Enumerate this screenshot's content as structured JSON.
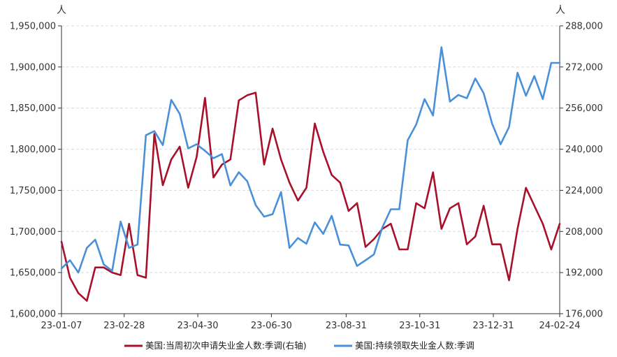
{
  "chart_data": {
    "type": "line",
    "left_axis": {
      "unit": "人",
      "ylim": [
        1600000,
        1950000
      ],
      "ticks": [
        "1,950,000",
        "1,900,000",
        "1,850,000",
        "1,800,000",
        "1,750,000",
        "1,700,000",
        "1,650,000",
        "1,600,000"
      ]
    },
    "right_axis": {
      "unit": "人",
      "ylim": [
        176000,
        288000
      ],
      "ticks": [
        "288,000",
        "272,000",
        "256,000",
        "240,000",
        "224,000",
        "208,000",
        "192,000",
        "176,000"
      ]
    },
    "x_tick_labels": [
      "23-01-07",
      "23-02-28",
      "23-04-30",
      "23-06-30",
      "23-08-31",
      "23-10-31",
      "23-12-31",
      "24-02-24"
    ],
    "x_tick_dates": [
      "2023-01-07",
      "2023-02-28",
      "2023-04-30",
      "2023-06-30",
      "2023-08-31",
      "2023-10-31",
      "2023-12-31",
      "2024-02-24"
    ],
    "x_range": [
      "2023-01-07",
      "2024-02-24"
    ],
    "grid": "horizontal dashed",
    "legend_position": "bottom",
    "series": [
      {
        "name": "美国:当周初次申请失业金人数:季调(右轴)",
        "axis": "right",
        "color": "#a8102a",
        "x": [
          "2023-01-07",
          "2023-01-14",
          "2023-01-21",
          "2023-01-28",
          "2023-02-04",
          "2023-02-11",
          "2023-02-18",
          "2023-02-25",
          "2023-03-04",
          "2023-03-11",
          "2023-03-18",
          "2023-03-25",
          "2023-04-01",
          "2023-04-08",
          "2023-04-15",
          "2023-04-22",
          "2023-04-29",
          "2023-05-06",
          "2023-05-13",
          "2023-05-20",
          "2023-05-27",
          "2023-06-03",
          "2023-06-10",
          "2023-06-17",
          "2023-06-24",
          "2023-07-01",
          "2023-07-08",
          "2023-07-15",
          "2023-07-22",
          "2023-07-29",
          "2023-08-05",
          "2023-08-12",
          "2023-08-19",
          "2023-08-26",
          "2023-09-02",
          "2023-09-09",
          "2023-09-16",
          "2023-09-23",
          "2023-09-30",
          "2023-10-07",
          "2023-10-14",
          "2023-10-21",
          "2023-10-28",
          "2023-11-04",
          "2023-11-11",
          "2023-11-18",
          "2023-11-25",
          "2023-12-02",
          "2023-12-09",
          "2023-12-16",
          "2023-12-23",
          "2023-12-30",
          "2024-01-06",
          "2024-01-13",
          "2024-01-20",
          "2024-01-27",
          "2024-02-03",
          "2024-02-10",
          "2024-02-17",
          "2024-02-24"
        ],
        "values": [
          204000,
          190000,
          184000,
          181000,
          194000,
          194000,
          192000,
          191000,
          211000,
          191000,
          190000,
          246000,
          226000,
          236000,
          241000,
          225000,
          237000,
          260000,
          229000,
          234000,
          236000,
          259000,
          261000,
          262000,
          234000,
          248000,
          236000,
          227000,
          220000,
          225000,
          250000,
          239000,
          230000,
          227000,
          216000,
          219000,
          202000,
          205000,
          209000,
          211000,
          201000,
          201000,
          219000,
          217000,
          231000,
          209000,
          217000,
          219000,
          203000,
          206000,
          218000,
          203000,
          203000,
          189000,
          209000,
          225000,
          218000,
          211000,
          201000,
          211000
        ]
      },
      {
        "name": "美国:持续领取失业金人数:季调",
        "axis": "left",
        "color": "#4a90d9",
        "x": [
          "2023-01-07",
          "2023-01-14",
          "2023-01-21",
          "2023-01-28",
          "2023-02-04",
          "2023-02-11",
          "2023-02-18",
          "2023-02-25",
          "2023-03-04",
          "2023-03-11",
          "2023-03-18",
          "2023-03-25",
          "2023-04-01",
          "2023-04-08",
          "2023-04-15",
          "2023-04-22",
          "2023-04-29",
          "2023-05-06",
          "2023-05-13",
          "2023-05-20",
          "2023-05-27",
          "2023-06-03",
          "2023-06-10",
          "2023-06-17",
          "2023-06-24",
          "2023-07-01",
          "2023-07-08",
          "2023-07-15",
          "2023-07-22",
          "2023-07-29",
          "2023-08-05",
          "2023-08-12",
          "2023-08-19",
          "2023-08-26",
          "2023-09-02",
          "2023-09-09",
          "2023-09-16",
          "2023-09-23",
          "2023-09-30",
          "2023-10-07",
          "2023-10-14",
          "2023-10-21",
          "2023-10-28",
          "2023-11-04",
          "2023-11-11",
          "2023-11-18",
          "2023-11-25",
          "2023-12-02",
          "2023-12-09",
          "2023-12-16",
          "2023-12-23",
          "2023-12-30",
          "2024-01-06",
          "2024-01-13",
          "2024-01-20",
          "2024-01-27",
          "2024-02-03",
          "2024-02-10",
          "2024-02-17",
          "2024-02-24"
        ],
        "values": [
          1655000,
          1665000,
          1650000,
          1680000,
          1690000,
          1660000,
          1652000,
          1712000,
          1680000,
          1684000,
          1817000,
          1822000,
          1805000,
          1860000,
          1843000,
          1801000,
          1806000,
          1798000,
          1789000,
          1794000,
          1756000,
          1772000,
          1761000,
          1732000,
          1718000,
          1721000,
          1748000,
          1680000,
          1692000,
          1685000,
          1711000,
          1697000,
          1719000,
          1684000,
          1683000,
          1658000,
          1665000,
          1672000,
          1705000,
          1727000,
          1727000,
          1811000,
          1830000,
          1861000,
          1841000,
          1924000,
          1858000,
          1866000,
          1862000,
          1886000,
          1868000,
          1831000,
          1806000,
          1827000,
          1893000,
          1865000,
          1889000,
          1861000,
          1905000,
          1905000
        ]
      }
    ]
  }
}
